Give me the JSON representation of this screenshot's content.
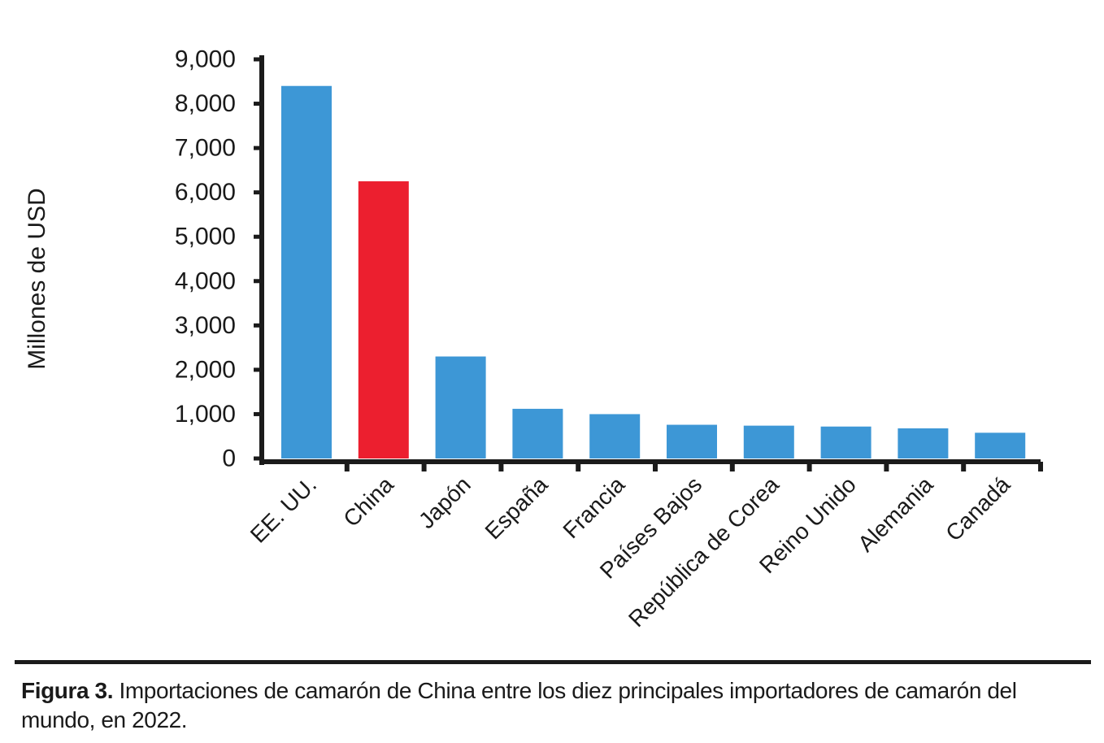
{
  "colors": {
    "default_bar": "#3d97d6",
    "highlight_bar": "#ec1f2f",
    "axis": "#1b1b1b",
    "text": "#1a1a1a"
  },
  "chart_data": {
    "type": "bar",
    "title": "",
    "xlabel": "",
    "ylabel": "Millones de USD",
    "ylim": [
      0,
      9000
    ],
    "yticks": [
      0,
      1000,
      2000,
      3000,
      4000,
      5000,
      6000,
      7000,
      8000,
      9000
    ],
    "ytick_labels": [
      "0",
      "1,000",
      "2,000",
      "3,000",
      "4,000",
      "5,000",
      "6,000",
      "7,000",
      "8,000",
      "9,000"
    ],
    "categories": [
      "EE. UU.",
      "China",
      "Japón",
      "España",
      "Francia",
      "Países Bajos",
      "República de Corea",
      "Reino Unido",
      "Alemania",
      "Canadá"
    ],
    "values": [
      8400,
      6250,
      2300,
      1120,
      1000,
      760,
      740,
      720,
      680,
      580
    ],
    "highlight": "China",
    "grid": false
  },
  "caption": {
    "label": "Figura 3.",
    "text": " Importaciones de camarón de China entre los diez principales importadores de camarón del mundo, en 2022."
  }
}
